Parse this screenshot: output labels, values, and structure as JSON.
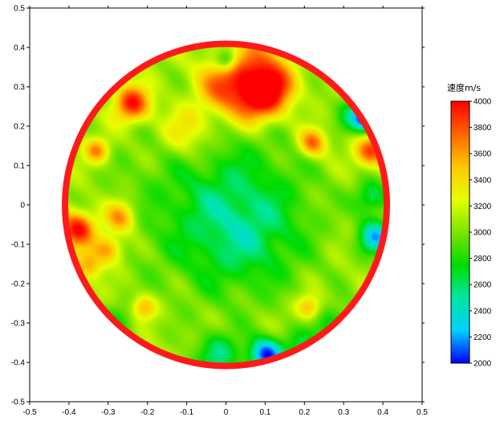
{
  "chart_data": {
    "type": "heatmap",
    "title": "",
    "xlabel": "",
    "ylabel": "",
    "xlim": [
      -0.5,
      0.5
    ],
    "ylim": [
      -0.5,
      0.5
    ],
    "x_ticks": [
      "-0.5",
      "-0.4",
      "-0.3",
      "-0.2",
      "-0.1",
      "0",
      "0.1",
      "0.2",
      "0.3",
      "0.4",
      "0.5"
    ],
    "y_ticks": [
      "0.5",
      "0.4",
      "0.3",
      "0.2",
      "0.1",
      "0",
      "-0.1",
      "-0.2",
      "-0.3",
      "-0.4",
      "-0.5"
    ],
    "grid": false,
    "circle": {
      "center": [
        0.0,
        0.0
      ],
      "radius": 0.41,
      "outline_color": "#ff1a1a"
    },
    "base_value": 3100,
    "colorbar": {
      "title": "速度m/s",
      "min": 2000,
      "max": 4000,
      "ticks": [
        "4000",
        "3800",
        "3600",
        "3400",
        "3200",
        "3000",
        "2800",
        "2600",
        "2400",
        "2200",
        "2000"
      ],
      "colors": [
        "#0000ff",
        "#00d0ff",
        "#00e6a0",
        "#00dc00",
        "#7ce400",
        "#e6ff00",
        "#ffc800",
        "#ff6400",
        "#ff0000"
      ]
    },
    "anomalies": [
      {
        "x": -0.02,
        "y": 0.01,
        "value": 2750,
        "spread": 0.17
      },
      {
        "x": 0.05,
        "y": -0.07,
        "value": 2800,
        "spread": 0.1
      },
      {
        "x": 0.0,
        "y": 0.31,
        "value": 3850,
        "spread": 0.05
      },
      {
        "x": 0.08,
        "y": 0.27,
        "value": 4000,
        "spread": 0.045
      },
      {
        "x": 0.13,
        "y": 0.31,
        "value": 3700,
        "spread": 0.04
      },
      {
        "x": -0.24,
        "y": 0.26,
        "value": 4000,
        "spread": 0.032
      },
      {
        "x": 0.22,
        "y": 0.16,
        "value": 3800,
        "spread": 0.025
      },
      {
        "x": -0.33,
        "y": 0.14,
        "value": 3700,
        "spread": 0.022
      },
      {
        "x": 0.37,
        "y": 0.14,
        "value": 3900,
        "spread": 0.028
      },
      {
        "x": -0.38,
        "y": -0.06,
        "value": 4000,
        "spread": 0.032
      },
      {
        "x": -0.27,
        "y": -0.03,
        "value": 3700,
        "spread": 0.028
      },
      {
        "x": -0.3,
        "y": -0.11,
        "value": 3650,
        "spread": 0.025
      },
      {
        "x": -0.35,
        "y": -0.15,
        "value": 3600,
        "spread": 0.025
      },
      {
        "x": -0.21,
        "y": -0.26,
        "value": 3600,
        "spread": 0.022
      },
      {
        "x": 0.21,
        "y": -0.26,
        "value": 3600,
        "spread": 0.022
      },
      {
        "x": 0.08,
        "y": 0.37,
        "value": 3600,
        "spread": 0.04
      },
      {
        "x": -0.1,
        "y": 0.19,
        "value": 3500,
        "spread": 0.05
      },
      {
        "x": 0.0,
        "y": 0.37,
        "value": 2500,
        "spread": 0.02
      },
      {
        "x": 0.33,
        "y": 0.23,
        "value": 2600,
        "spread": 0.03
      },
      {
        "x": 0.36,
        "y": 0.22,
        "value": 2200,
        "spread": 0.022
      },
      {
        "x": 0.38,
        "y": -0.08,
        "value": 2300,
        "spread": 0.03
      },
      {
        "x": 0.37,
        "y": 0.02,
        "value": 2600,
        "spread": 0.03
      },
      {
        "x": 0.1,
        "y": -0.38,
        "value": 2100,
        "spread": 0.03
      },
      {
        "x": -0.02,
        "y": -0.38,
        "value": 2600,
        "spread": 0.04
      },
      {
        "x": 0.28,
        "y": -0.31,
        "value": 2700,
        "spread": 0.04
      },
      {
        "x": 0.19,
        "y": -0.37,
        "value": 2700,
        "spread": 0.035
      },
      {
        "x": -0.28,
        "y": -0.3,
        "value": 2800,
        "spread": 0.035
      },
      {
        "x": -0.35,
        "y": 0.3,
        "value": 2900,
        "spread": 0.03
      }
    ]
  }
}
